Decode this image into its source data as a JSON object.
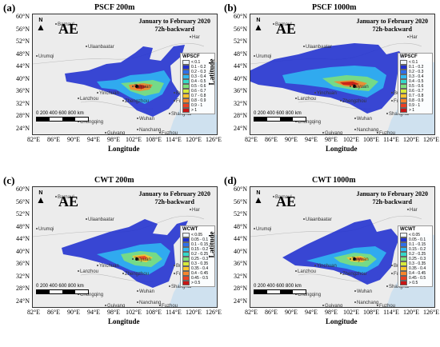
{
  "panels": [
    {
      "label": "(a)",
      "title": "PSCF 200m",
      "metric": "PSCF",
      "legend_title": "WPSCF",
      "legend_values": [
        "< 0.1",
        "0.1 - 0.2",
        "0.2 - 0.3",
        "0.3 - 0.4",
        "0.4 - 0.5",
        "0.5 - 0.6",
        "0.6 - 0.7",
        "0.7 - 0.8",
        "0.8 - 0.9",
        "0.9 - 1",
        "> 1"
      ]
    },
    {
      "label": "(b)",
      "title": "PSCF 1000m",
      "metric": "PSCF",
      "legend_title": "WPSCF",
      "legend_values": [
        "< 0.1",
        "0.1 - 0.2",
        "0.2 - 0.3",
        "0.3 - 0.4",
        "0.4 - 0.5",
        "0.5 - 0.6",
        "0.6 - 0.7",
        "0.7 - 0.8",
        "0.8 - 0.9",
        "0.9 - 1",
        "> 1"
      ]
    },
    {
      "label": "(c)",
      "title": "CWT 200m",
      "metric": "CWT",
      "legend_title": "WCWT",
      "legend_values": [
        "< 0.05",
        "0.05 - 0.1",
        "0.1 - 0.15",
        "0.15 - 0.2",
        "0.2 - 0.25",
        "0.25 - 0.3",
        "0.3 - 0.35",
        "0.35 - 0.4",
        "0.4 - 0.45",
        "0.45 - 0.5",
        "> 0.5"
      ]
    },
    {
      "label": "(d)",
      "title": "CWT 1000m",
      "metric": "CWT",
      "legend_title": "WCWT",
      "legend_values": [
        "< 0.05",
        "0.05 - 0.1",
        "0.1 - 0.15",
        "0.15 - 0.2",
        "0.2 - 0.25",
        "0.25 - 0.3",
        "0.3 - 0.35",
        "0.35 - 0.4",
        "0.4 - 0.45",
        "0.45 - 0.5",
        "> 0.5"
      ]
    }
  ],
  "common": {
    "site": "AE",
    "period_line1": "January to February 2020",
    "period_line2": "72h-backward",
    "north_label": "N",
    "scale_label": "0   200 400 600 800",
    "scale_unit": "km",
    "ylabel": "Latitude",
    "xlabel": "Longitude",
    "lat_ticks": [
      "60°N",
      "56°N",
      "52°N",
      "48°N",
      "44°N",
      "40°N",
      "36°N",
      "32°N",
      "28°N",
      "24°N"
    ],
    "lon_ticks": [
      "82°E",
      "86°E",
      "90°E",
      "94°E",
      "98°E",
      "102°E",
      "108°E",
      "114°E",
      "120°E",
      "126°E"
    ],
    "places": [
      "Barnaul",
      "Urumqi",
      "Ulaanbaatar",
      "Yinchuan",
      "Lanzhou",
      "Zhengzhou",
      "Taiyuan",
      "Chongqing",
      "Wuhan",
      "Shanghai",
      "Nanchang",
      "Guiyang",
      "Fuzhou",
      "Busan",
      "Fukuoka",
      "Pyon",
      "Har"
    ]
  },
  "legend_colors": [
    "#eef4fa",
    "#1f2fcf",
    "#2f6fe9",
    "#2fb8f2",
    "#35d8c8",
    "#7ee07a",
    "#d6ea3a",
    "#fbc42e",
    "#f7852a",
    "#ea3f22",
    "#c81515"
  ]
}
